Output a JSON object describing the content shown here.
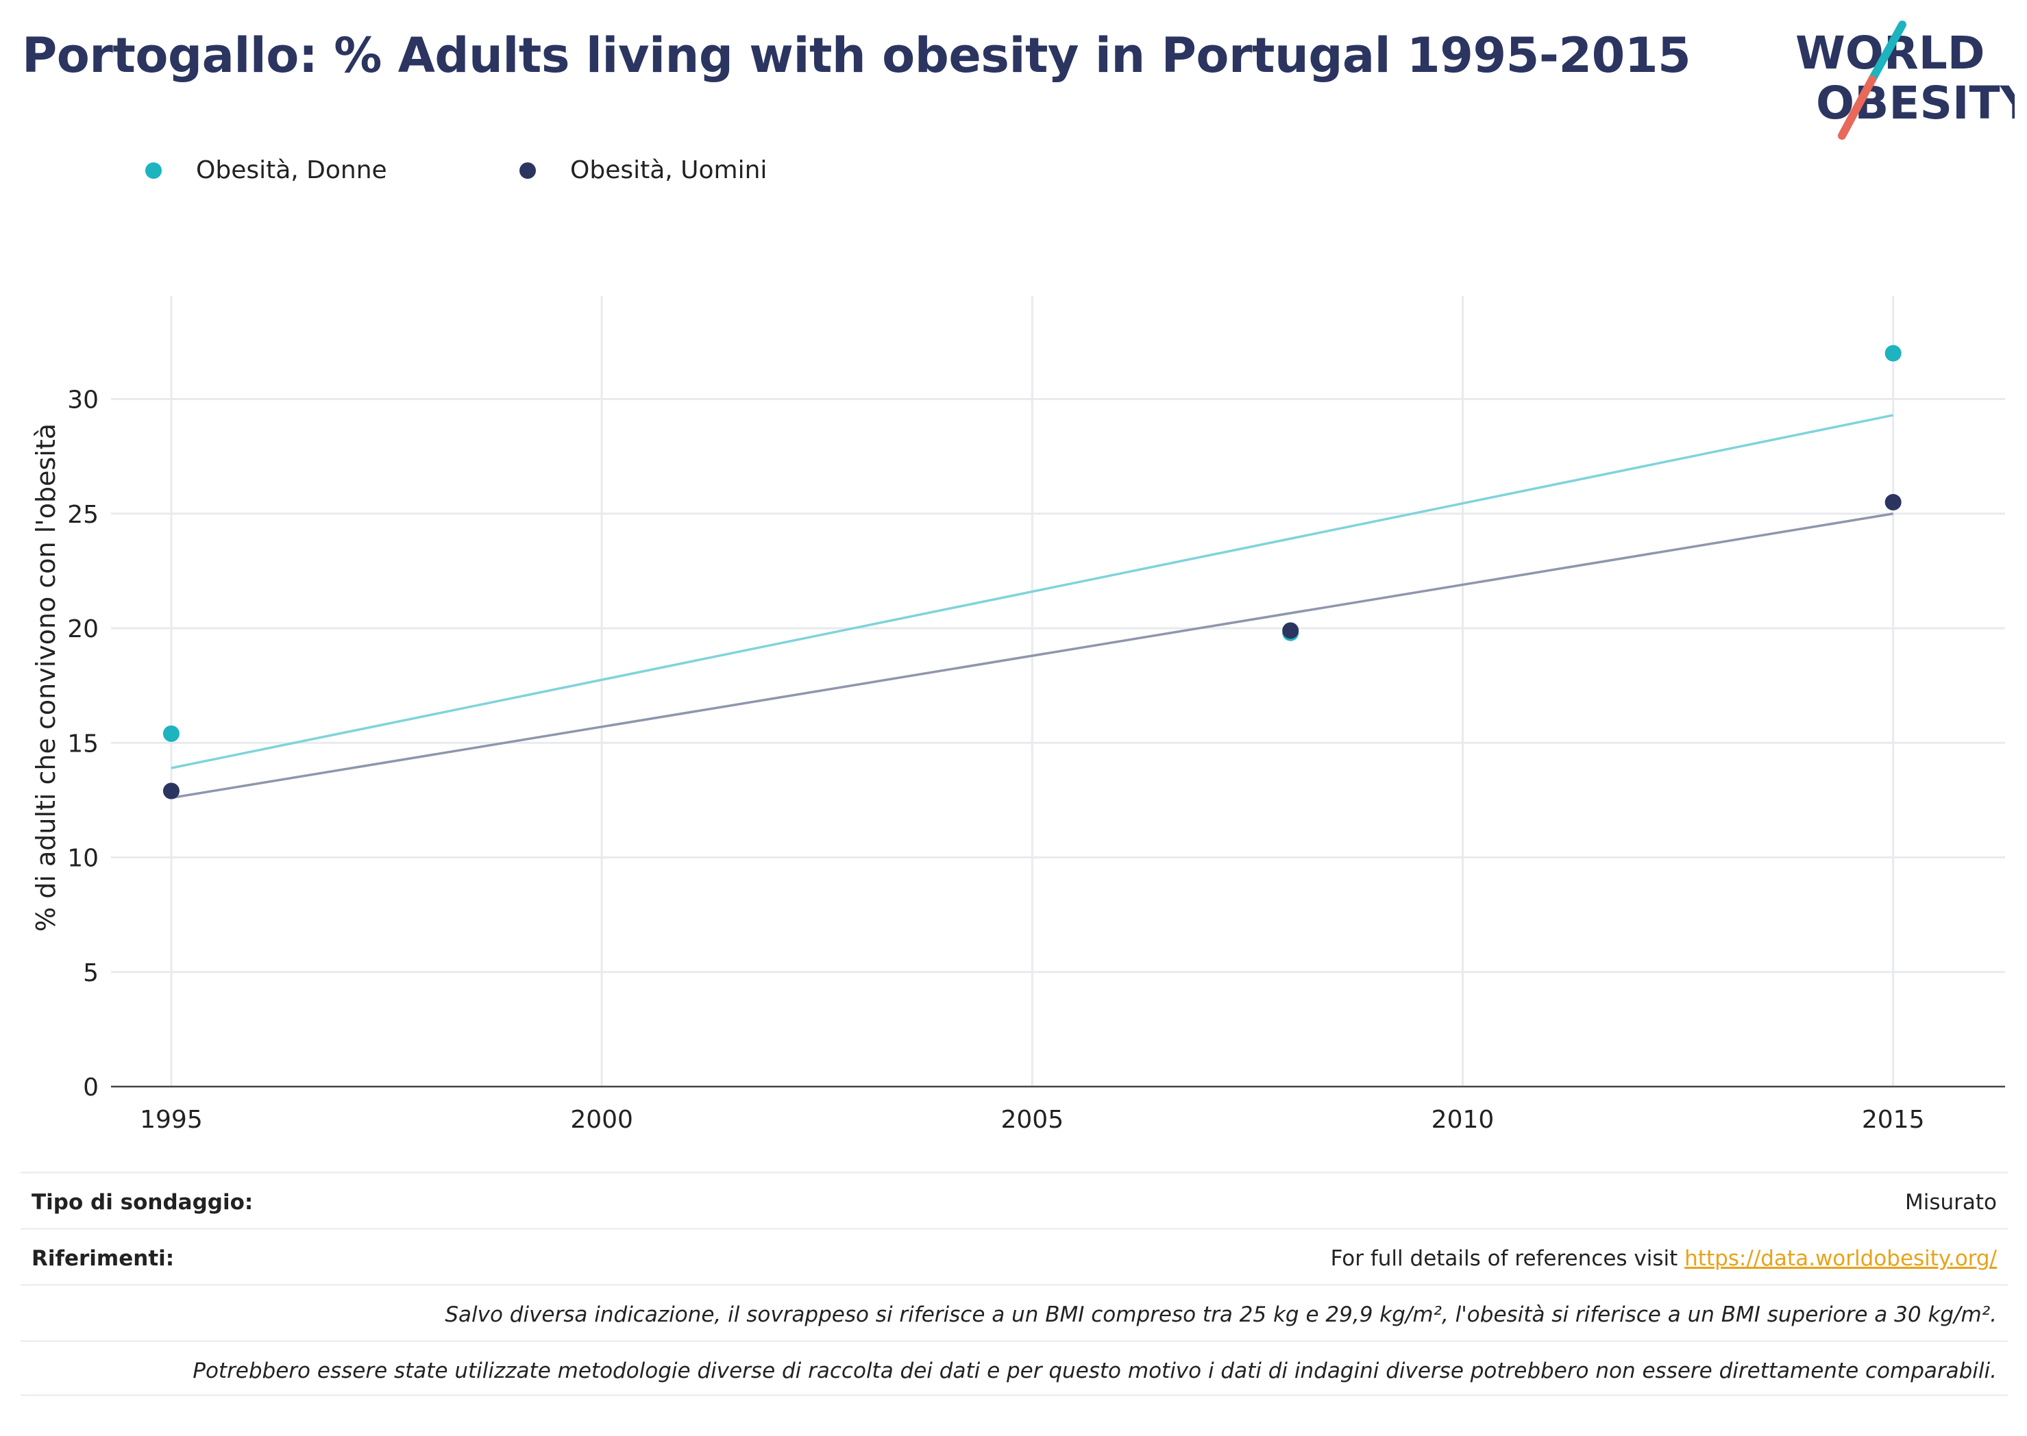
{
  "title": "Portogallo: % Adults living with obesity in Portugal 1995-2015",
  "logo": {
    "line1": "WORLD",
    "line2": "OBESITY"
  },
  "colors": {
    "women": "#1db3bf",
    "men": "#2b3560",
    "women_trend": "#7fd4da",
    "men_trend": "#8f96ac",
    "title": "#2b3560",
    "link": "#e8a21a"
  },
  "chart_data": {
    "type": "scatter",
    "ylabel": "% di adulti che convivono con l'obesità",
    "xlabel": "",
    "xlim": [
      1994.3,
      2016.3
    ],
    "ylim": [
      0,
      34.5
    ],
    "xticks": [
      1995,
      2000,
      2005,
      2010,
      2015
    ],
    "yticks": [
      0,
      5,
      10,
      15,
      20,
      25,
      30
    ],
    "grid": true,
    "legend_position": "top-left",
    "series": [
      {
        "name": "Obesità, Donne",
        "color": "#1db3bf",
        "trend_color": "#7fd4da",
        "x": [
          1995,
          2008,
          2015
        ],
        "y": [
          15.4,
          19.8,
          32.0
        ],
        "trend": [
          [
            1995,
            13.9
          ],
          [
            2015,
            29.3
          ]
        ]
      },
      {
        "name": "Obesità, Uomini",
        "color": "#2b3560",
        "trend_color": "#8f96ac",
        "x": [
          1995,
          2008,
          2015
        ],
        "y": [
          12.9,
          19.9,
          25.5
        ],
        "trend": [
          [
            1995,
            12.6
          ],
          [
            2015,
            25.0
          ]
        ]
      }
    ]
  },
  "footer": {
    "survey_label": "Tipo di sondaggio:",
    "survey_value": "Misurato",
    "ref_label": "Riferimenti:",
    "ref_text": "For full details of references visit ",
    "ref_link": "https://data.worldobesity.org/",
    "note1": "Salvo diversa indicazione, il sovrappeso si riferisce a un BMI compreso tra 25 kg e 29,9 kg/m², l'obesità si riferisce a un BMI superiore a 30 kg/m².",
    "note2": "Potrebbero essere state utilizzate metodologie diverse di raccolta dei dati e per questo motivo i dati di indagini diverse potrebbero non essere direttamente comparabili."
  }
}
